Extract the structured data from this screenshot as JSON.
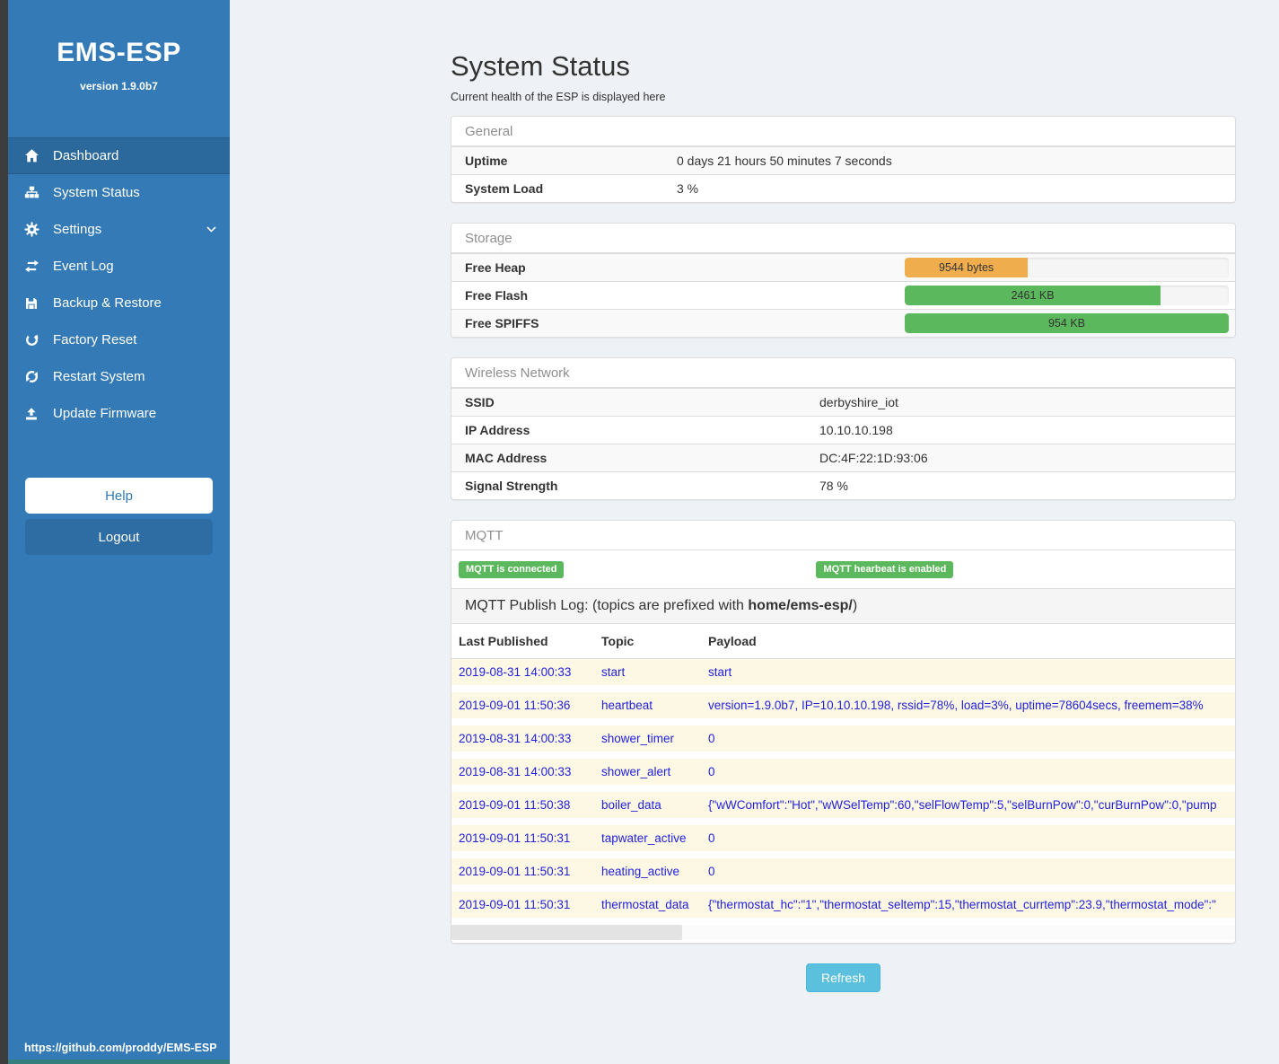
{
  "colors": {
    "sidebar_blue": "#337ab7",
    "sidebar_active_blue": "#2b689c",
    "warning_orange": "#f0ad4e",
    "success_green": "#5cb85c",
    "info_blue": "#5bc0de",
    "log_row_yellow": "#fcf8e3",
    "log_text_blue": "#2222dd"
  },
  "sidebar": {
    "title": "EMS-ESP",
    "version": "version 1.9.0b7",
    "items": [
      {
        "label": "Dashboard",
        "icon": "home-icon",
        "active": true
      },
      {
        "label": "System Status",
        "icon": "sitemap-icon"
      },
      {
        "label": "Settings",
        "icon": "gear-icon",
        "chevron": "down"
      },
      {
        "label": "Event Log",
        "icon": "exchange-icon"
      },
      {
        "label": "Backup & Restore",
        "icon": "save-icon"
      },
      {
        "label": "Factory Reset",
        "icon": "rotate-right-icon"
      },
      {
        "label": "Restart System",
        "icon": "refresh-icon"
      },
      {
        "label": "Update Firmware",
        "icon": "upload-icon"
      }
    ],
    "help_label": "Help",
    "logout_label": "Logout",
    "footer_link": "https://github.com/proddy/EMS-ESP"
  },
  "header": {
    "title": "System Status",
    "subtitle": "Current health of the ESP is displayed here"
  },
  "panels": {
    "general": {
      "title": "General",
      "rows": [
        {
          "label": "Uptime",
          "value": "0 days 21 hours 50 minutes 7 seconds"
        },
        {
          "label": "System Load",
          "value": "3 %"
        }
      ]
    },
    "storage": {
      "title": "Storage",
      "rows": [
        {
          "label": "Free Heap",
          "value": "9544 bytes",
          "percent": 38,
          "color": "#f0ad4e"
        },
        {
          "label": "Free Flash",
          "value": "2461 KB",
          "percent": 79,
          "color": "#5cb85c"
        },
        {
          "label": "Free SPIFFS",
          "value": "954 KB",
          "percent": 100,
          "color": "#5cb85c"
        }
      ]
    },
    "wireless": {
      "title": "Wireless Network",
      "rows": [
        {
          "label": "SSID",
          "value": "derbyshire_iot"
        },
        {
          "label": "IP Address",
          "value": "10.10.10.198"
        },
        {
          "label": "MAC Address",
          "value": "DC:4F:22:1D:93:06"
        },
        {
          "label": "Signal Strength",
          "value": "78 %"
        }
      ]
    },
    "mqtt": {
      "title": "MQTT",
      "badges": [
        {
          "label": "MQTT is connected"
        },
        {
          "label": "MQTT hearbeat is enabled"
        }
      ],
      "publish_log": {
        "prefix": "MQTT Publish Log: (topics are prefixed with ",
        "bold": "home/ems-esp/",
        "suffix": ")"
      },
      "table": {
        "headers": [
          "Last Published",
          "Topic",
          "Payload"
        ],
        "rows": [
          {
            "time": "2019-08-31 14:00:33",
            "topic": "start",
            "payload": "start"
          },
          {
            "time": "2019-09-01 11:50:36",
            "topic": "heartbeat",
            "payload": "version=1.9.0b7, IP=10.10.10.198, rssid=78%, load=3%, uptime=78604secs, freemem=38%"
          },
          {
            "time": "2019-08-31 14:00:33",
            "topic": "shower_timer",
            "payload": "0"
          },
          {
            "time": "2019-08-31 14:00:33",
            "topic": "shower_alert",
            "payload": "0"
          },
          {
            "time": "2019-09-01 11:50:38",
            "topic": "boiler_data",
            "payload": "{\"wWComfort\":\"Hot\",\"wWSelTemp\":60,\"selFlowTemp\":5,\"selBurnPow\":0,\"curBurnPow\":0,\"pump"
          },
          {
            "time": "2019-09-01 11:50:31",
            "topic": "tapwater_active",
            "payload": "0"
          },
          {
            "time": "2019-09-01 11:50:31",
            "topic": "heating_active",
            "payload": "0"
          },
          {
            "time": "2019-09-01 11:50:31",
            "topic": "thermostat_data",
            "payload": "{\"thermostat_hc\":\"1\",\"thermostat_seltemp\":15,\"thermostat_currtemp\":23.9,\"thermostat_mode\":\""
          }
        ]
      }
    }
  },
  "refresh_label": "Refresh"
}
